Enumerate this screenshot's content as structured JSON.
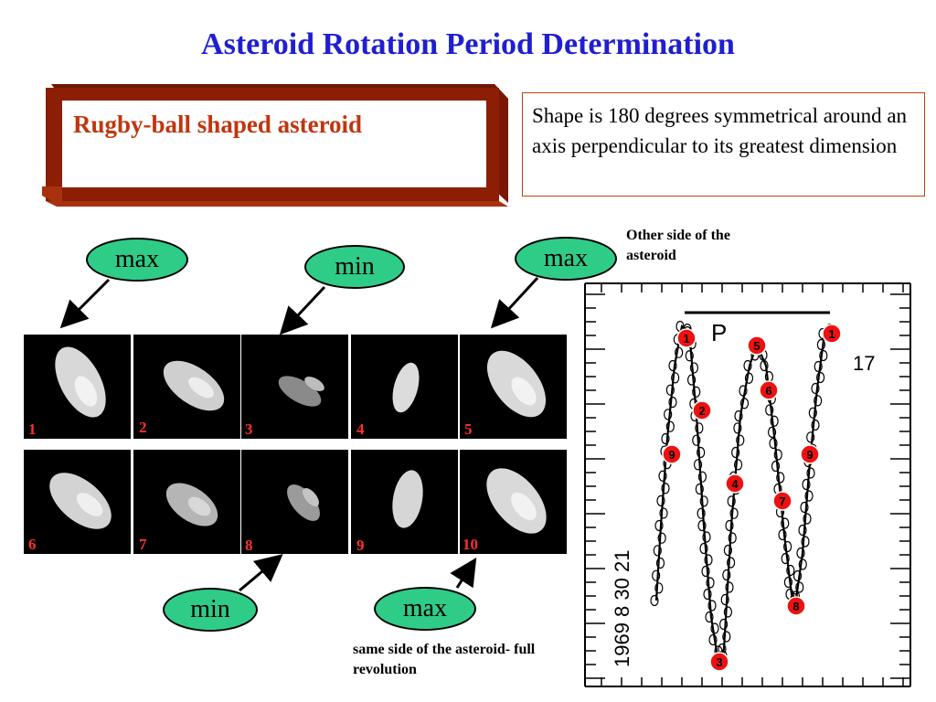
{
  "title": "Asteroid Rotation Period Determination",
  "framed_label": "Rugby-ball shaped asteroid",
  "description": "Shape is 180 degrees symmetrical around an axis perpendicular to its greatest dimension",
  "bubbles": {
    "top_left": "max",
    "top_middle": "min",
    "top_right": "max",
    "bottom_left": "min",
    "bottom_right": "max"
  },
  "notes": {
    "other_side": "Other side of the asteroid",
    "same_side": "same side of the asteroid- full revolution"
  },
  "frames": [
    {
      "label": "1"
    },
    {
      "label": "2"
    },
    {
      "label": "3"
    },
    {
      "label": "4"
    },
    {
      "label": "5"
    },
    {
      "label": "6"
    },
    {
      "label": "7"
    },
    {
      "label": "8"
    },
    {
      "label": "9"
    },
    {
      "label": "10"
    }
  ],
  "lightcurve": {
    "period_label": "P",
    "side_number": "17",
    "date_label": "1969 8 30 21",
    "markers": [
      "1",
      "2",
      "3",
      "4",
      "5",
      "6",
      "7",
      "8",
      "9",
      "9",
      "1"
    ]
  },
  "colors": {
    "title": "#1f1fd0",
    "frame_border": "#8b1e05",
    "framed_text": "#c0360f",
    "bubble": "#2fcc88",
    "marker": "#ee1111"
  }
}
